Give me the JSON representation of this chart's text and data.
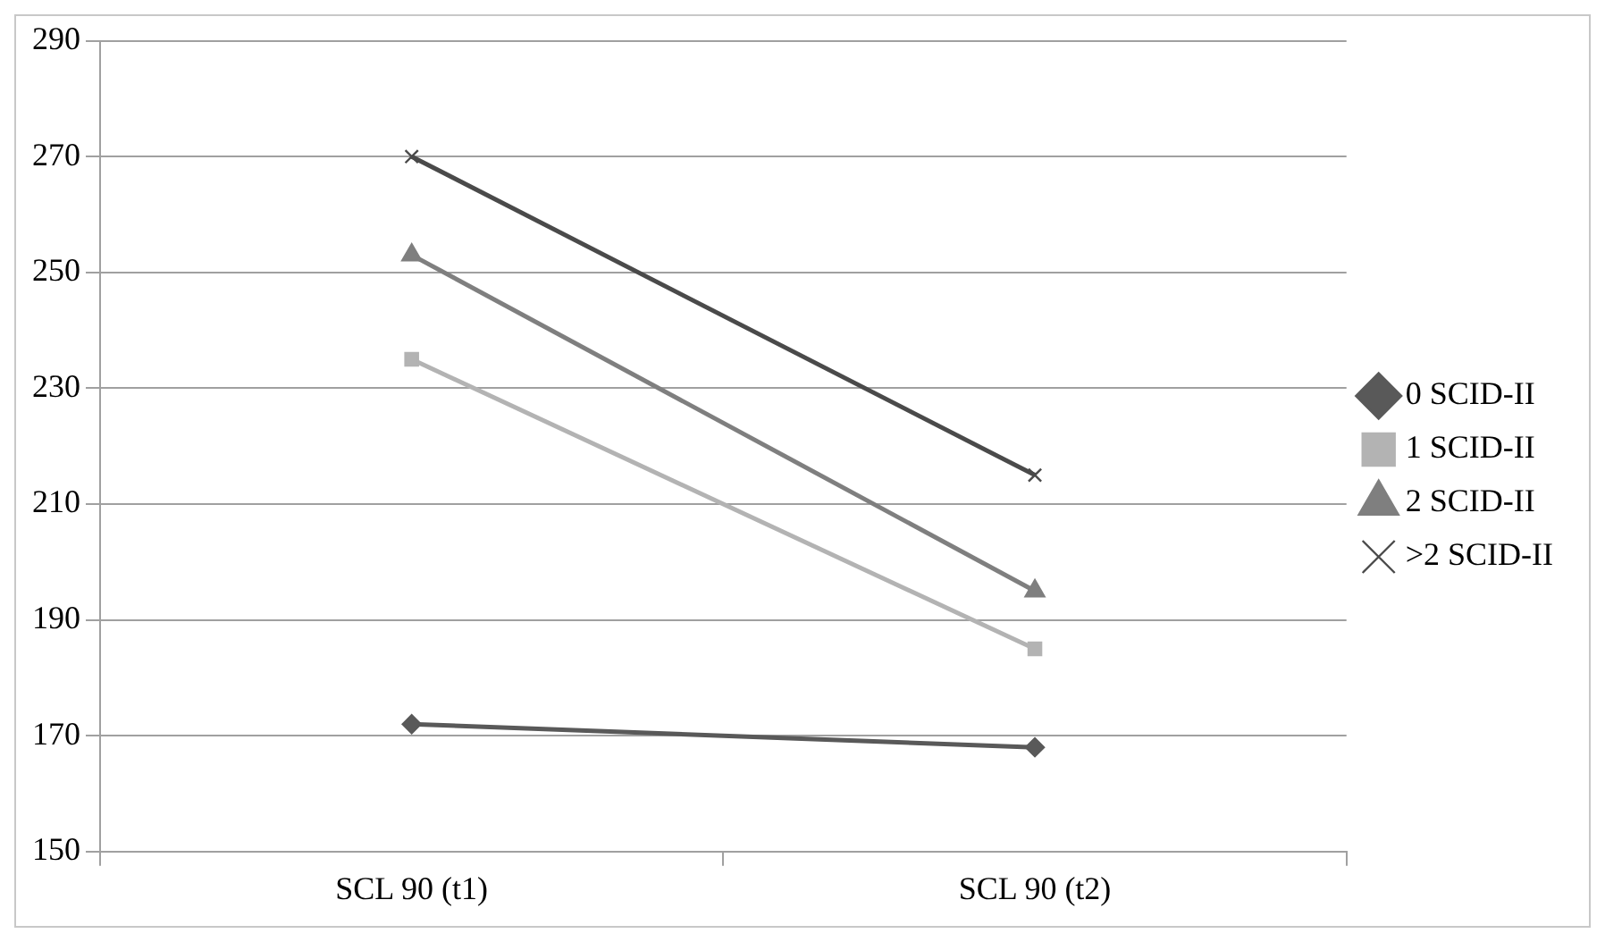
{
  "chart_data": {
    "type": "line",
    "categories": [
      "SCL 90 (t1)",
      "SCL 90 (t2)"
    ],
    "series": [
      {
        "name": "0 SCID-II",
        "color": "#595959",
        "marker": "diamond",
        "values": [
          172,
          168
        ]
      },
      {
        "name": "1 SCID-II",
        "color": "#b3b3b3",
        "marker": "square",
        "values": [
          235,
          185
        ]
      },
      {
        "name": "2 SCID-II",
        "color": "#7f7f7f",
        "marker": "triangle",
        "values": [
          253,
          195
        ]
      },
      {
        "name": ">2 SCID-II",
        "color": "#4a4a4a",
        "marker": "cross",
        "values": [
          270,
          215
        ]
      }
    ],
    "ylim": [
      150,
      290
    ],
    "yticks": [
      150,
      170,
      190,
      210,
      230,
      250,
      270,
      290
    ],
    "grid": "y",
    "legend": "right"
  }
}
